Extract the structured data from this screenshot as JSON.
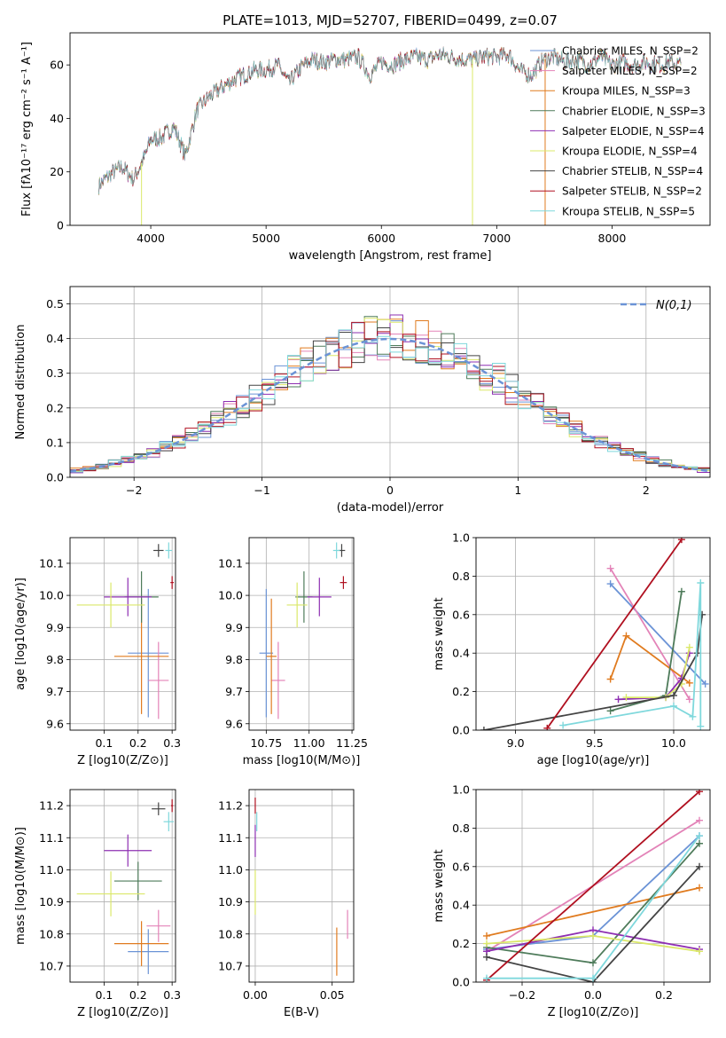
{
  "figure_title": "PLATE=1013, MJD=52707, FIBERID=0499, z=0.07",
  "colors": {
    "chabrier_miles": "#6b93d6",
    "salpeter_miles": "#e383b8",
    "kroupa_miles": "#e07b1f",
    "chabrier_elodie": "#4e7b5a",
    "salpeter_elodie": "#8e2fb2",
    "kroupa_elodie": "#dbe86a",
    "chabrier_stelib": "#444444",
    "salpeter_stelib": "#b01020",
    "kroupa_stelib": "#7fd8dc",
    "normal_curve": "#6b93d6"
  },
  "chart_data": [
    {
      "id": "spectrum",
      "type": "line",
      "title": "PLATE=1013, MJD=52707, FIBERID=0499, z=0.07",
      "xlabel": "wavelength [Angstrom, rest frame]",
      "ylabel": "Flux [fλ10⁻¹⁷ erg cm⁻² s⁻¹ A⁻¹]",
      "xlim": [
        3300,
        8850
      ],
      "ylim": [
        0,
        72
      ],
      "xticks": [
        4000,
        5000,
        6000,
        7000,
        8000
      ],
      "yticks": [
        0,
        20,
        40,
        60
      ],
      "grid": false,
      "legend_position": "top-right",
      "legend": [
        {
          "label": "Chabrier MILES, N_SSP=2",
          "color_key": "chabrier_miles"
        },
        {
          "label": "Salpeter MILES, N_SSP=2",
          "color_key": "salpeter_miles"
        },
        {
          "label": "Kroupa MILES, N_SSP=3",
          "color_key": "kroupa_miles"
        },
        {
          "label": "Chabrier ELODIE, N_SSP=3",
          "color_key": "chabrier_elodie"
        },
        {
          "label": "Salpeter ELODIE, N_SSP=4",
          "color_key": "salpeter_elodie"
        },
        {
          "label": "Kroupa ELODIE, N_SSP=4",
          "color_key": "kroupa_elodie"
        },
        {
          "label": "Chabrier STELIB, N_SSP=4",
          "color_key": "chabrier_stelib"
        },
        {
          "label": "Salpeter STELIB, N_SSP=2",
          "color_key": "salpeter_stelib"
        },
        {
          "label": "Kroupa STELIB, N_SSP=5",
          "color_key": "kroupa_stelib"
        }
      ],
      "spectrum_envelope": {
        "x": [
          3550,
          3650,
          3750,
          3850,
          3950,
          4000,
          4100,
          4200,
          4300,
          4400,
          4500,
          4600,
          4700,
          4800,
          4900,
          5000,
          5100,
          5200,
          5300,
          5400,
          5500,
          5600,
          5700,
          5800,
          5900,
          6000,
          6100,
          6200,
          6300,
          6400,
          6500,
          6600,
          6700,
          6800,
          6900,
          7000,
          7100,
          7200,
          7300,
          7400,
          7500,
          7600,
          7700,
          7800,
          7900,
          8000,
          8100,
          8200,
          8300,
          8400,
          8500,
          8600
        ],
        "y": [
          15,
          19,
          22,
          17,
          26,
          32,
          33,
          37,
          26,
          43,
          48,
          51,
          54,
          56,
          58,
          58,
          60,
          53,
          59,
          62,
          61,
          62,
          62,
          63,
          56,
          61,
          60,
          62,
          63,
          62,
          64,
          63,
          62,
          62,
          63,
          63,
          64,
          58,
          56,
          62,
          63,
          61,
          62,
          60,
          63,
          60,
          61,
          60,
          61,
          60,
          61,
          60
        ]
      },
      "spectrum_drops": [
        {
          "x": 3920,
          "color_key": "kroupa_elodie"
        },
        {
          "x": 6790,
          "color_key": "kroupa_elodie"
        },
        {
          "x": 7420,
          "color_key": "kroupa_miles"
        }
      ]
    },
    {
      "id": "residuals",
      "type": "histogram",
      "xlabel": "(data-model)/error",
      "ylabel": "Normed distribution",
      "xlim": [
        -2.5,
        2.5
      ],
      "ylim": [
        0,
        0.55
      ],
      "xticks": [
        -2,
        -1,
        0,
        1,
        2
      ],
      "yticks": [
        0.0,
        0.1,
        0.2,
        0.3,
        0.4,
        0.5
      ],
      "grid": true,
      "legend_position": "top-right",
      "normal_curve_label": "N(0,1)",
      "bin_width": 0.1,
      "bin_start": -2.5
    },
    {
      "id": "age_vs_Z",
      "type": "errorbar",
      "xlabel": "Z [log10(Z/Z⊙)]",
      "ylabel": "age  [log10(age/yr)]",
      "xlim": [
        0.0,
        0.31
      ],
      "ylim": [
        9.58,
        10.18
      ],
      "xticks": [
        0.1,
        0.2,
        0.3
      ],
      "yticks": [
        9.6,
        9.7,
        9.8,
        9.9,
        10.0,
        10.1
      ],
      "grid": true,
      "points": [
        {
          "key": "chabrier_miles",
          "x": 0.23,
          "xerr": 0.06,
          "y": 9.82,
          "yerr": 0.2
        },
        {
          "key": "salpeter_miles",
          "x": 0.26,
          "xerr": 0.03,
          "y": 9.735,
          "yerr": 0.12
        },
        {
          "key": "kroupa_miles",
          "x": 0.21,
          "xerr": 0.08,
          "y": 9.81,
          "yerr": 0.18
        },
        {
          "key": "chabrier_elodie",
          "x": 0.21,
          "xerr": 0.05,
          "y": 9.995,
          "yerr": 0.08
        },
        {
          "key": "salpeter_elodie",
          "x": 0.17,
          "xerr": 0.07,
          "y": 9.995,
          "yerr": 0.06
        },
        {
          "key": "kroupa_elodie",
          "x": 0.12,
          "xerr": 0.1,
          "y": 9.97,
          "yerr": 0.07
        },
        {
          "key": "chabrier_stelib",
          "x": 0.26,
          "xerr": 0.015,
          "y": 10.14,
          "yerr": 0.02
        },
        {
          "key": "salpeter_stelib",
          "x": 0.3,
          "xerr": 0.005,
          "y": 10.04,
          "yerr": 0.02
        },
        {
          "key": "kroupa_stelib",
          "x": 0.29,
          "xerr": 0.01,
          "y": 10.14,
          "yerr": 0.025
        }
      ]
    },
    {
      "id": "age_vs_mass",
      "type": "errorbar",
      "xlabel": "mass [log10(M/M⊙)]",
      "ylabel": "",
      "xlim": [
        10.65,
        11.26
      ],
      "ylim": [
        9.58,
        10.18
      ],
      "xticks": [
        10.75,
        11.0,
        11.25
      ],
      "yticks": [
        9.6,
        9.7,
        9.8,
        9.9,
        10.0,
        10.1
      ],
      "grid": true,
      "points": [
        {
          "key": "chabrier_miles",
          "x": 10.75,
          "xerr": 0.04,
          "y": 9.82,
          "yerr": 0.2
        },
        {
          "key": "salpeter_miles",
          "x": 10.82,
          "xerr": 0.04,
          "y": 9.735,
          "yerr": 0.12
        },
        {
          "key": "kroupa_miles",
          "x": 10.78,
          "xerr": 0.03,
          "y": 9.81,
          "yerr": 0.18
        },
        {
          "key": "chabrier_elodie",
          "x": 10.97,
          "xerr": 0.05,
          "y": 9.995,
          "yerr": 0.08
        },
        {
          "key": "salpeter_elodie",
          "x": 11.06,
          "xerr": 0.07,
          "y": 9.995,
          "yerr": 0.06
        },
        {
          "key": "kroupa_elodie",
          "x": 10.93,
          "xerr": 0.06,
          "y": 9.97,
          "yerr": 0.07
        },
        {
          "key": "chabrier_stelib",
          "x": 11.19,
          "xerr": 0.02,
          "y": 10.14,
          "yerr": 0.02
        },
        {
          "key": "salpeter_stelib",
          "x": 11.2,
          "xerr": 0.02,
          "y": 10.04,
          "yerr": 0.02
        },
        {
          "key": "kroupa_stelib",
          "x": 11.16,
          "xerr": 0.02,
          "y": 10.14,
          "yerr": 0.025
        }
      ]
    },
    {
      "id": "weight_vs_age",
      "type": "line",
      "xlabel": "age  [log10(age/yr)]",
      "ylabel": "mass weight",
      "xlim": [
        8.75,
        10.23
      ],
      "ylim": [
        0,
        1.0
      ],
      "xticks": [
        9.0,
        9.5,
        10.0
      ],
      "yticks": [
        0.0,
        0.2,
        0.4,
        0.6,
        0.8,
        1.0
      ],
      "grid": true,
      "series": [
        {
          "key": "chabrier_miles",
          "x": [
            9.6,
            10.2
          ],
          "y": [
            0.76,
            0.24
          ]
        },
        {
          "key": "salpeter_miles",
          "x": [
            9.6,
            10.1
          ],
          "y": [
            0.84,
            0.16
          ]
        },
        {
          "key": "kroupa_miles",
          "x": [
            9.6,
            9.7,
            10.1
          ],
          "y": [
            0.265,
            0.49,
            0.245
          ]
        },
        {
          "key": "chabrier_elodie",
          "x": [
            9.6,
            9.95,
            10.05
          ],
          "y": [
            0.1,
            0.18,
            0.72
          ]
        },
        {
          "key": "salpeter_elodie",
          "x": [
            9.65,
            9.95,
            10.05,
            10.1
          ],
          "y": [
            0.16,
            0.17,
            0.27,
            0.4
          ]
        },
        {
          "key": "kroupa_elodie",
          "x": [
            9.7,
            9.95,
            10.05,
            10.1
          ],
          "y": [
            0.17,
            0.17,
            0.24,
            0.43
          ]
        },
        {
          "key": "chabrier_stelib",
          "x": [
            8.8,
            10.0,
            10.15,
            10.18
          ],
          "y": [
            0.0,
            0.18,
            0.4,
            0.6
          ]
        },
        {
          "key": "salpeter_stelib",
          "x": [
            9.2,
            10.05
          ],
          "y": [
            0.01,
            0.99
          ]
        },
        {
          "key": "kroupa_stelib",
          "x": [
            9.3,
            10.0,
            10.12,
            10.17,
            10.17
          ],
          "y": [
            0.025,
            0.125,
            0.07,
            0.765,
            0.02
          ]
        }
      ]
    },
    {
      "id": "mass_vs_Z",
      "type": "errorbar",
      "xlabel": "Z [log10(Z/Z⊙)]",
      "ylabel": "mass [log10(M/M⊙)]",
      "xlim": [
        0.0,
        0.31
      ],
      "ylim": [
        10.65,
        11.25
      ],
      "xticks": [
        0.1,
        0.2,
        0.3
      ],
      "yticks": [
        10.7,
        10.8,
        10.9,
        11.0,
        11.1,
        11.2
      ],
      "grid": true,
      "points": [
        {
          "key": "chabrier_miles",
          "x": 0.23,
          "xerr": 0.06,
          "y": 10.745,
          "yerr": 0.07
        },
        {
          "key": "salpeter_miles",
          "x": 0.26,
          "xerr": 0.035,
          "y": 10.825,
          "yerr": 0.05
        },
        {
          "key": "kroupa_miles",
          "x": 0.21,
          "xerr": 0.08,
          "y": 10.77,
          "yerr": 0.07
        },
        {
          "key": "chabrier_elodie",
          "x": 0.2,
          "xerr": 0.07,
          "y": 10.965,
          "yerr": 0.06
        },
        {
          "key": "salpeter_elodie",
          "x": 0.17,
          "xerr": 0.07,
          "y": 11.06,
          "yerr": 0.05
        },
        {
          "key": "kroupa_elodie",
          "x": 0.12,
          "xerr": 0.1,
          "y": 10.925,
          "yerr": 0.07
        },
        {
          "key": "chabrier_stelib",
          "x": 0.26,
          "xerr": 0.02,
          "y": 11.19,
          "yerr": 0.02
        },
        {
          "key": "salpeter_stelib",
          "x": 0.3,
          "xerr": 0.003,
          "y": 11.2,
          "yerr": 0.02
        },
        {
          "key": "kroupa_stelib",
          "x": 0.29,
          "xerr": 0.015,
          "y": 11.15,
          "yerr": 0.03
        }
      ]
    },
    {
      "id": "mass_vs_ebv",
      "type": "errorbar",
      "xlabel": "E(B-V)",
      "ylabel": "",
      "xlim": [
        -0.004,
        0.064
      ],
      "ylim": [
        10.65,
        11.25
      ],
      "xticks": [
        0.0,
        0.05
      ],
      "yticks": [
        10.7,
        10.8,
        10.9,
        11.0,
        11.1,
        11.2
      ],
      "grid": true,
      "points": [
        {
          "key": "kroupa_miles",
          "x": 0.053,
          "xerr": 0.0,
          "y": 10.745,
          "yerr": 0.075
        },
        {
          "key": "salpeter_miles",
          "x": 0.06,
          "xerr": 0.0,
          "y": 10.83,
          "yerr": 0.045
        },
        {
          "key": "kroupa_elodie",
          "x": 0.0,
          "xerr": 0.0,
          "y": 10.93,
          "yerr": 0.07
        },
        {
          "key": "salpeter_elodie",
          "x": 0.0,
          "xerr": 0.0,
          "y": 11.09,
          "yerr": 0.05
        },
        {
          "key": "kroupa_stelib",
          "x": 0.001,
          "xerr": 0.0,
          "y": 11.15,
          "yerr": 0.03
        },
        {
          "key": "salpeter_stelib",
          "x": 0.0,
          "xerr": 0.0,
          "y": 11.2,
          "yerr": 0.025
        }
      ]
    },
    {
      "id": "weight_vs_Z",
      "type": "line",
      "xlabel": "Z [log10(Z/Z⊙)]",
      "ylabel": "mass weight",
      "xlim": [
        -0.33,
        0.33
      ],
      "ylim": [
        0,
        1.0
      ],
      "xticks": [
        -0.2,
        0.0,
        0.2
      ],
      "yticks": [
        0.0,
        0.2,
        0.4,
        0.6,
        0.8,
        1.0
      ],
      "grid": true,
      "series": [
        {
          "key": "chabrier_miles",
          "x": [
            -0.3,
            0.0,
            0.3
          ],
          "y": [
            0.17,
            0.24,
            0.76
          ]
        },
        {
          "key": "salpeter_miles",
          "x": [
            -0.3,
            0.3
          ],
          "y": [
            0.16,
            0.84
          ]
        },
        {
          "key": "kroupa_miles",
          "x": [
            -0.3,
            0.3
          ],
          "y": [
            0.24,
            0.49
          ]
        },
        {
          "key": "chabrier_elodie",
          "x": [
            -0.3,
            0.0,
            0.3
          ],
          "y": [
            0.18,
            0.1,
            0.72
          ]
        },
        {
          "key": "salpeter_elodie",
          "x": [
            -0.3,
            0.0,
            0.3
          ],
          "y": [
            0.16,
            0.27,
            0.17
          ]
        },
        {
          "key": "kroupa_elodie",
          "x": [
            -0.3,
            0.0,
            0.3
          ],
          "y": [
            0.2,
            0.24,
            0.16
          ]
        },
        {
          "key": "chabrier_stelib",
          "x": [
            -0.3,
            0.0,
            0.3
          ],
          "y": [
            0.13,
            0.0,
            0.6
          ]
        },
        {
          "key": "salpeter_stelib",
          "x": [
            -0.3,
            0.3
          ],
          "y": [
            0.01,
            0.99
          ]
        },
        {
          "key": "kroupa_stelib",
          "x": [
            -0.3,
            0.0,
            0.3
          ],
          "y": [
            0.02,
            0.02,
            0.76
          ]
        }
      ]
    }
  ]
}
